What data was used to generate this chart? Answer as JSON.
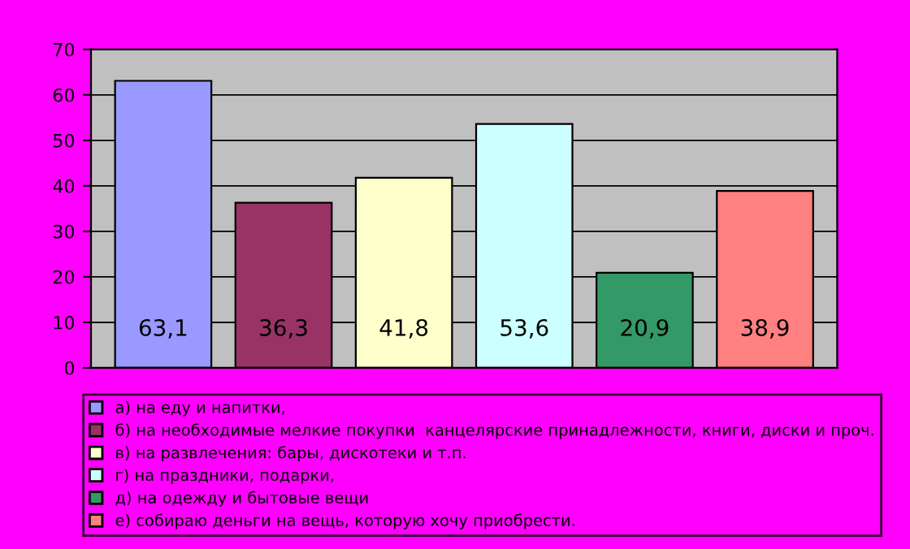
{
  "chart_data": {
    "type": "bar",
    "categories": [
      null,
      null,
      null,
      null,
      null,
      null
    ],
    "series": [
      {
        "name": "а) на еду и напитки,",
        "color": "#9999ff",
        "values": [
          63.1,
          null,
          null,
          null,
          null,
          null
        ]
      },
      {
        "name": "б) на необходимые мелкие покупки  канцелярские принадлежности, книги, диски и проч.",
        "color": "#993366",
        "values": [
          null,
          36.3,
          null,
          null,
          null,
          null
        ]
      },
      {
        "name": "в) на развлечения: бары, дискотеки и т.п.",
        "color": "#ffffcc",
        "values": [
          null,
          null,
          41.8,
          null,
          null,
          null
        ]
      },
      {
        "name": "г) на праздники, подарки,",
        "color": "#ccffff",
        "values": [
          null,
          null,
          null,
          53.6,
          null,
          null
        ]
      },
      {
        "name": "д) на одежду и бытовые вещи",
        "color": "#339966",
        "values": [
          null,
          null,
          null,
          null,
          20.9,
          null
        ]
      },
      {
        "name": "е) собираю деньги на вещь, которую хочу приобрести.",
        "color": "#ff8080",
        "values": [
          null,
          null,
          null,
          null,
          null,
          38.9
        ]
      }
    ],
    "value_labels": [
      "63,1",
      "36,3",
      "41,8",
      "53,6",
      "20,9",
      "38,9"
    ],
    "ylim": [
      0,
      70
    ],
    "yticks": [
      0,
      10,
      20,
      30,
      40,
      50,
      60,
      70
    ],
    "grid": "y",
    "legend": "bottom"
  }
}
